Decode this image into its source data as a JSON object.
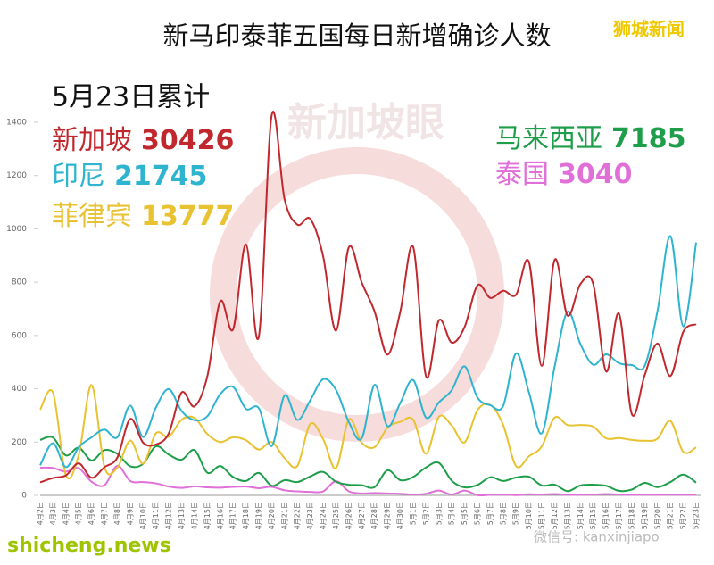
{
  "chart_data": {
    "type": "line",
    "title": "新马印泰菲五国每日新增确诊人数",
    "subtitle": "5月23日累计",
    "source": "狮城新闻",
    "watermark": "新加坡眼",
    "footer_left": "shicheng.news",
    "footer_right": "微信号: kanxinjiapo",
    "categories": [
      "4月2日",
      "4月3日",
      "4月4日",
      "4月5日",
      "4月6日",
      "4月7日",
      "4月8日",
      "4月9日",
      "4月10日",
      "4月11日",
      "4月12日",
      "4月13日",
      "4月14日",
      "4月15日",
      "4月16日",
      "4月17日",
      "4月18日",
      "4月19日",
      "4月20日",
      "4月21日",
      "4月22日",
      "4月23日",
      "4月24日",
      "4月25日",
      "4月26日",
      "4月27日",
      "4月28日",
      "4月29日",
      "4月30日",
      "5月1日",
      "5月2日",
      "5月3日",
      "5月4日",
      "5月5日",
      "5月6日",
      "5月7日",
      "5月8日",
      "5月9日",
      "5月10日",
      "5月11日",
      "5月12日",
      "5月13日",
      "5月14日",
      "5月15日",
      "5月16日",
      "5月17日",
      "5月18日",
      "5月19日",
      "5月20日",
      "5月21日",
      "5月22日",
      "5月23日"
    ],
    "series": [
      {
        "name": "新加坡",
        "total": 30426,
        "color": "#c0282d",
        "values": [
          49,
          65,
          75,
          120,
          66,
          106,
          142,
          287,
          198,
          191,
          233,
          386,
          334,
          447,
          728,
          623,
          942,
          596,
          1426,
          1111,
          1016,
          1037,
          897,
          618,
          931,
          799,
          690,
          528,
          690,
          932,
          447,
          657,
          573,
          632,
          788,
          741,
          768,
          753,
          876,
          486,
          884,
          675,
          793,
          793,
          465,
          682,
          305,
          451,
          570,
          448,
          614,
          642
        ]
      },
      {
        "name": "印尼",
        "total": 21745,
        "color": "#2fb4d0",
        "values": [
          113,
          196,
          106,
          181,
          218,
          247,
          218,
          337,
          219,
          330,
          399,
          316,
          282,
          297,
          380,
          407,
          325,
          327,
          185,
          375,
          283,
          357,
          436,
          396,
          275,
          214,
          415,
          260,
          347,
          433,
          292,
          349,
          395,
          484,
          367,
          338,
          336,
          533,
          387,
          233,
          484,
          689,
          568,
          490,
          529,
          496,
          489,
          486,
          693,
          973,
          634,
          949
        ]
      },
      {
        "name": "菲律宾",
        "total": 13777,
        "color": "#e8c230",
        "values": [
          322,
          385,
          76,
          152,
          414,
          106,
          104,
          206,
          119,
          233,
          220,
          284,
          291,
          230,
          200,
          218,
          207,
          172,
          200,
          140,
          111,
          268,
          211,
          102,
          285,
          198,
          181,
          254,
          276,
          284,
          156,
          295,
          262,
          199,
          320,
          339,
          264,
          110,
          147,
          184,
          292,
          264,
          264,
          258,
          214,
          215,
          208,
          205,
          213,
          279,
          163,
          180
        ]
      },
      {
        "name": "马来西亚",
        "total": 7185,
        "color": "#1e9e4a",
        "values": [
          208,
          217,
          150,
          179,
          131,
          170,
          156,
          109,
          118,
          184,
          153,
          134,
          170,
          85,
          110,
          69,
          54,
          84,
          36,
          57,
          50,
          71,
          88,
          51,
          40,
          38,
          31,
          94,
          57,
          69,
          105,
          122,
          55,
          30,
          39,
          68,
          54,
          67,
          70,
          37,
          40,
          16,
          37,
          40,
          36,
          17,
          22,
          47,
          31,
          50,
          78,
          48
        ]
      },
      {
        "name": "泰国",
        "total": 3040,
        "color": "#e070d8",
        "values": [
          104,
          103,
          89,
          102,
          51,
          38,
          111,
          54,
          50,
          45,
          33,
          28,
          34,
          30,
          29,
          32,
          33,
          27,
          32,
          19,
          15,
          13,
          15,
          53,
          15,
          7,
          9,
          7,
          6,
          3,
          6,
          18,
          3,
          18,
          1,
          2,
          3,
          1,
          4,
          3,
          5,
          2,
          2,
          3,
          5,
          3,
          2,
          3,
          2,
          3,
          2,
          2
        ]
      }
    ],
    "ylim": [
      0,
      1400
    ],
    "yticks": [
      0,
      200,
      400,
      600,
      800,
      1000,
      1200,
      1400
    ],
    "grid": false
  }
}
